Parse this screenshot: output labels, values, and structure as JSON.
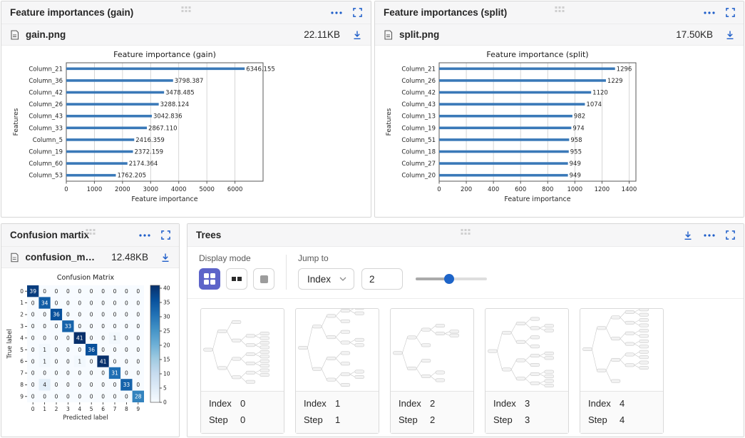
{
  "colors": {
    "accent": "#1d5dc9",
    "active_mode_button": "#5d64c9",
    "bar": "#3a79b8",
    "slider_thumb": "#1d64c8"
  },
  "icons": {
    "more": "ellipsis-dots",
    "expand": "fullscreen-corners",
    "download": "down-arrow-underline",
    "file": "document-outline",
    "drag": "six-dot-grid",
    "mode_grid": "2x2-grid",
    "mode_pair": "two-squares",
    "mode_single": "one-square",
    "chevron": "chevron-down"
  },
  "panels": {
    "gain": {
      "title": "Feature importances (gain)",
      "file_name": "gain.png",
      "file_size": "22.11KB"
    },
    "split": {
      "title": "Feature importances (split)",
      "file_name": "split.png",
      "file_size": "17.50KB"
    },
    "confusion": {
      "title": "Confusion martix",
      "file_name": "confusion_mat...",
      "file_size": "12.48KB"
    },
    "trees": {
      "title": "Trees",
      "display_mode_label": "Display mode",
      "jump_to_label": "Jump to",
      "select_value": "Index",
      "input_value": "2",
      "slider_percent": 47,
      "cards": [
        {
          "index_label": "Index",
          "index_value": "0",
          "step_label": "Step",
          "step_value": "0"
        },
        {
          "index_label": "Index",
          "index_value": "1",
          "step_label": "Step",
          "step_value": "1"
        },
        {
          "index_label": "Index",
          "index_value": "2",
          "step_label": "Step",
          "step_value": "2"
        },
        {
          "index_label": "Index",
          "index_value": "3",
          "step_label": "Step",
          "step_value": "3"
        },
        {
          "index_label": "Index",
          "index_value": "4",
          "step_label": "Step",
          "step_value": "4"
        }
      ]
    }
  },
  "chart_data": [
    {
      "type": "bar",
      "orientation": "horizontal",
      "title": "Feature importance (gain)",
      "xlabel": "Feature importance",
      "ylabel": "Features",
      "categories": [
        "Column_21",
        "Column_36",
        "Column_42",
        "Column_26",
        "Column_43",
        "Column_33",
        "Column_5",
        "Column_19",
        "Column_60",
        "Column_53"
      ],
      "values": [
        6346.155,
        3798.387,
        3478.485,
        3288.124,
        3042.836,
        2867.11,
        2416.359,
        2372.159,
        2174.364,
        1762.205
      ],
      "value_labels": [
        "6346.155",
        "3798.387",
        "3478.485",
        "3288.124",
        "3042.836",
        "2867.110",
        "2416.359",
        "2372.159",
        "2174.364",
        "1762.205"
      ],
      "xticks": [
        0,
        1000,
        2000,
        3000,
        4000,
        5000,
        6000
      ],
      "xtick_labels": [
        "0",
        "1000",
        "2000",
        "3000",
        "4000",
        "5000",
        "6000"
      ],
      "xlim": [
        0,
        7000
      ],
      "grid": true,
      "bar_color": "#3a79b8"
    },
    {
      "type": "bar",
      "orientation": "horizontal",
      "title": "Feature importance (split)",
      "xlabel": "Feature importance",
      "ylabel": "Features",
      "categories": [
        "Column_21",
        "Column_26",
        "Column_42",
        "Column_43",
        "Column_13",
        "Column_19",
        "Column_51",
        "Column_18",
        "Column_27",
        "Column_20"
      ],
      "values": [
        1296,
        1229,
        1120,
        1074,
        982,
        974,
        958,
        955,
        949,
        949
      ],
      "value_labels": [
        "1296",
        "1229",
        "1120",
        "1074",
        "982",
        "974",
        "958",
        "955",
        "949",
        "949"
      ],
      "xticks": [
        0,
        200,
        400,
        600,
        800,
        1000,
        1200,
        1400
      ],
      "xtick_labels": [
        "0",
        "200",
        "400",
        "600",
        "800",
        "1000",
        "1200",
        "1400"
      ],
      "xlim": [
        0,
        1450
      ],
      "grid": true,
      "bar_color": "#3a79b8"
    },
    {
      "type": "heatmap",
      "title": "Confusion Matrix",
      "xlabel": "Predicted label",
      "ylabel": "True label",
      "x_tick_labels": [
        "0",
        "1",
        "2",
        "3",
        "4",
        "5",
        "6",
        "7",
        "8",
        "9"
      ],
      "y_tick_labels": [
        "0",
        "1",
        "2",
        "3",
        "4",
        "5",
        "6",
        "7",
        "8",
        "9"
      ],
      "matrix": [
        [
          39,
          0,
          0,
          0,
          0,
          0,
          0,
          0,
          0,
          0
        ],
        [
          0,
          34,
          0,
          0,
          0,
          0,
          0,
          0,
          0,
          0
        ],
        [
          0,
          0,
          36,
          0,
          0,
          0,
          0,
          0,
          0,
          0
        ],
        [
          0,
          0,
          0,
          33,
          0,
          0,
          0,
          0,
          0,
          0
        ],
        [
          0,
          0,
          0,
          0,
          41,
          0,
          0,
          1,
          0,
          0
        ],
        [
          0,
          1,
          0,
          0,
          0,
          36,
          0,
          0,
          0,
          0
        ],
        [
          0,
          1,
          0,
          0,
          1,
          0,
          41,
          0,
          0,
          0
        ],
        [
          0,
          0,
          0,
          0,
          0,
          0,
          0,
          31,
          0,
          0
        ],
        [
          0,
          4,
          0,
          0,
          0,
          0,
          0,
          0,
          33,
          0
        ],
        [
          0,
          0,
          0,
          0,
          0,
          0,
          0,
          0,
          0,
          28
        ]
      ],
      "colormap": "Blues",
      "vmin": 0,
      "vmax": 41,
      "colorbar_ticks": [
        0,
        5,
        10,
        15,
        20,
        25,
        30,
        35,
        40
      ],
      "colorbar_tick_labels": [
        "0",
        "5",
        "10",
        "15",
        "20",
        "25",
        "30",
        "35",
        "40"
      ]
    }
  ]
}
